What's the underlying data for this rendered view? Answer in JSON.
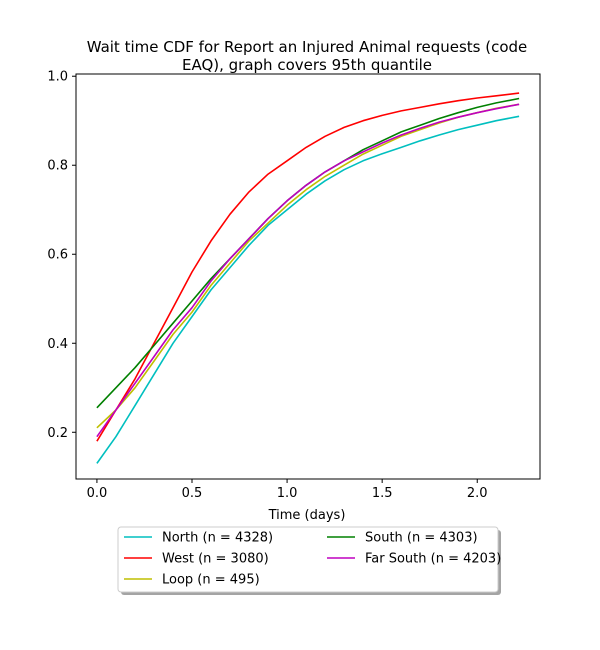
{
  "chart_data": {
    "type": "line",
    "title_lines": [
      "Wait time CDF for Report an Injured Animal  requests (code",
      "EAQ), graph covers 95th quantile"
    ],
    "xlabel": "Time (days)",
    "ylabel": "",
    "xlim": [
      -0.11,
      2.33
    ],
    "ylim": [
      0.095,
      1.005
    ],
    "xticks": [
      0.0,
      0.5,
      1.0,
      1.5,
      2.0
    ],
    "xtick_labels": [
      "0.0",
      "0.5",
      "1.0",
      "1.5",
      "2.0"
    ],
    "yticks": [
      0.2,
      0.4,
      0.6,
      0.8,
      1.0
    ],
    "ytick_labels": [
      "0.2",
      "0.4",
      "0.6",
      "0.8",
      "1.0"
    ],
    "grid": false,
    "legend_position": "below plot, two columns",
    "series": [
      {
        "name": "North (n = 4328)",
        "color": "#00bfbf",
        "x": [
          0.0,
          0.1,
          0.2,
          0.3,
          0.4,
          0.5,
          0.6,
          0.7,
          0.8,
          0.9,
          1.0,
          1.1,
          1.2,
          1.3,
          1.4,
          1.5,
          1.6,
          1.7,
          1.8,
          1.9,
          2.0,
          2.1,
          2.22
        ],
        "y": [
          0.13,
          0.19,
          0.26,
          0.33,
          0.4,
          0.46,
          0.52,
          0.57,
          0.62,
          0.665,
          0.7,
          0.735,
          0.765,
          0.79,
          0.81,
          0.826,
          0.84,
          0.855,
          0.868,
          0.88,
          0.89,
          0.9,
          0.91
        ]
      },
      {
        "name": "West (n = 3080)",
        "color": "#ff0000",
        "x": [
          0.0,
          0.1,
          0.2,
          0.3,
          0.4,
          0.5,
          0.6,
          0.7,
          0.8,
          0.9,
          1.0,
          1.1,
          1.2,
          1.3,
          1.4,
          1.5,
          1.6,
          1.7,
          1.8,
          1.9,
          2.0,
          2.1,
          2.22
        ],
        "y": [
          0.18,
          0.25,
          0.32,
          0.4,
          0.48,
          0.56,
          0.63,
          0.69,
          0.74,
          0.78,
          0.81,
          0.84,
          0.865,
          0.885,
          0.9,
          0.912,
          0.922,
          0.93,
          0.938,
          0.945,
          0.951,
          0.956,
          0.962
        ]
      },
      {
        "name": "Loop (n = 495)",
        "color": "#bfbf00",
        "x": [
          0.0,
          0.1,
          0.2,
          0.3,
          0.4,
          0.5,
          0.6,
          0.7,
          0.8,
          0.9,
          1.0,
          1.1,
          1.2,
          1.3,
          1.4,
          1.5,
          1.6,
          1.7,
          1.8,
          1.9,
          2.0,
          2.1,
          2.22
        ],
        "y": [
          0.21,
          0.25,
          0.3,
          0.36,
          0.42,
          0.47,
          0.53,
          0.58,
          0.63,
          0.67,
          0.71,
          0.745,
          0.775,
          0.8,
          0.825,
          0.845,
          0.865,
          0.88,
          0.895,
          0.908,
          0.918,
          0.928,
          0.937
        ]
      },
      {
        "name": "South (n = 4303)",
        "color": "#008000",
        "x": [
          0.0,
          0.1,
          0.2,
          0.3,
          0.4,
          0.5,
          0.6,
          0.7,
          0.8,
          0.9,
          1.0,
          1.1,
          1.2,
          1.3,
          1.4,
          1.5,
          1.6,
          1.7,
          1.8,
          1.9,
          2.0,
          2.1,
          2.22
        ],
        "y": [
          0.255,
          0.3,
          0.345,
          0.395,
          0.445,
          0.495,
          0.545,
          0.59,
          0.635,
          0.68,
          0.72,
          0.755,
          0.785,
          0.81,
          0.835,
          0.855,
          0.875,
          0.89,
          0.905,
          0.918,
          0.93,
          0.94,
          0.95
        ]
      },
      {
        "name": "Far South (n = 4203)",
        "color": "#bf00bf",
        "x": [
          0.0,
          0.1,
          0.2,
          0.3,
          0.4,
          0.5,
          0.6,
          0.7,
          0.8,
          0.9,
          1.0,
          1.1,
          1.2,
          1.3,
          1.4,
          1.5,
          1.6,
          1.7,
          1.8,
          1.9,
          2.0,
          2.1,
          2.22
        ],
        "y": [
          0.19,
          0.25,
          0.31,
          0.37,
          0.43,
          0.48,
          0.54,
          0.59,
          0.635,
          0.68,
          0.72,
          0.755,
          0.785,
          0.81,
          0.83,
          0.85,
          0.868,
          0.883,
          0.897,
          0.908,
          0.918,
          0.927,
          0.937
        ]
      }
    ],
    "legend_order": [
      "North (n = 4328)",
      "West (n = 3080)",
      "Loop (n = 495)",
      "South (n = 4303)",
      "Far South (n = 4203)"
    ]
  }
}
